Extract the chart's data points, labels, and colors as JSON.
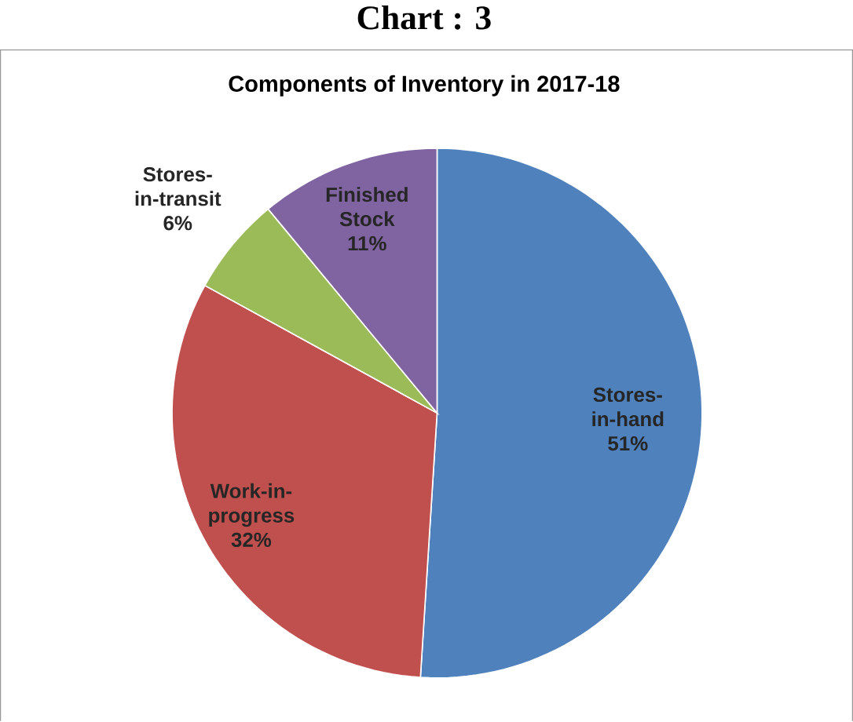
{
  "chart_data": {
    "type": "pie",
    "title": "Chart : 3",
    "subtitle": "Components of Inventory in 2017-18",
    "categories": [
      "Stores-in-hand",
      "Work-in-progress",
      "Stores-in-transit",
      "Finished Stock"
    ],
    "values": [
      51,
      32,
      6,
      11
    ],
    "value_labels": [
      "51%",
      "32%",
      "6%",
      "11%"
    ],
    "colors": [
      "#4f81bd",
      "#c0504d",
      "#9bbb59",
      "#8064a2"
    ]
  }
}
